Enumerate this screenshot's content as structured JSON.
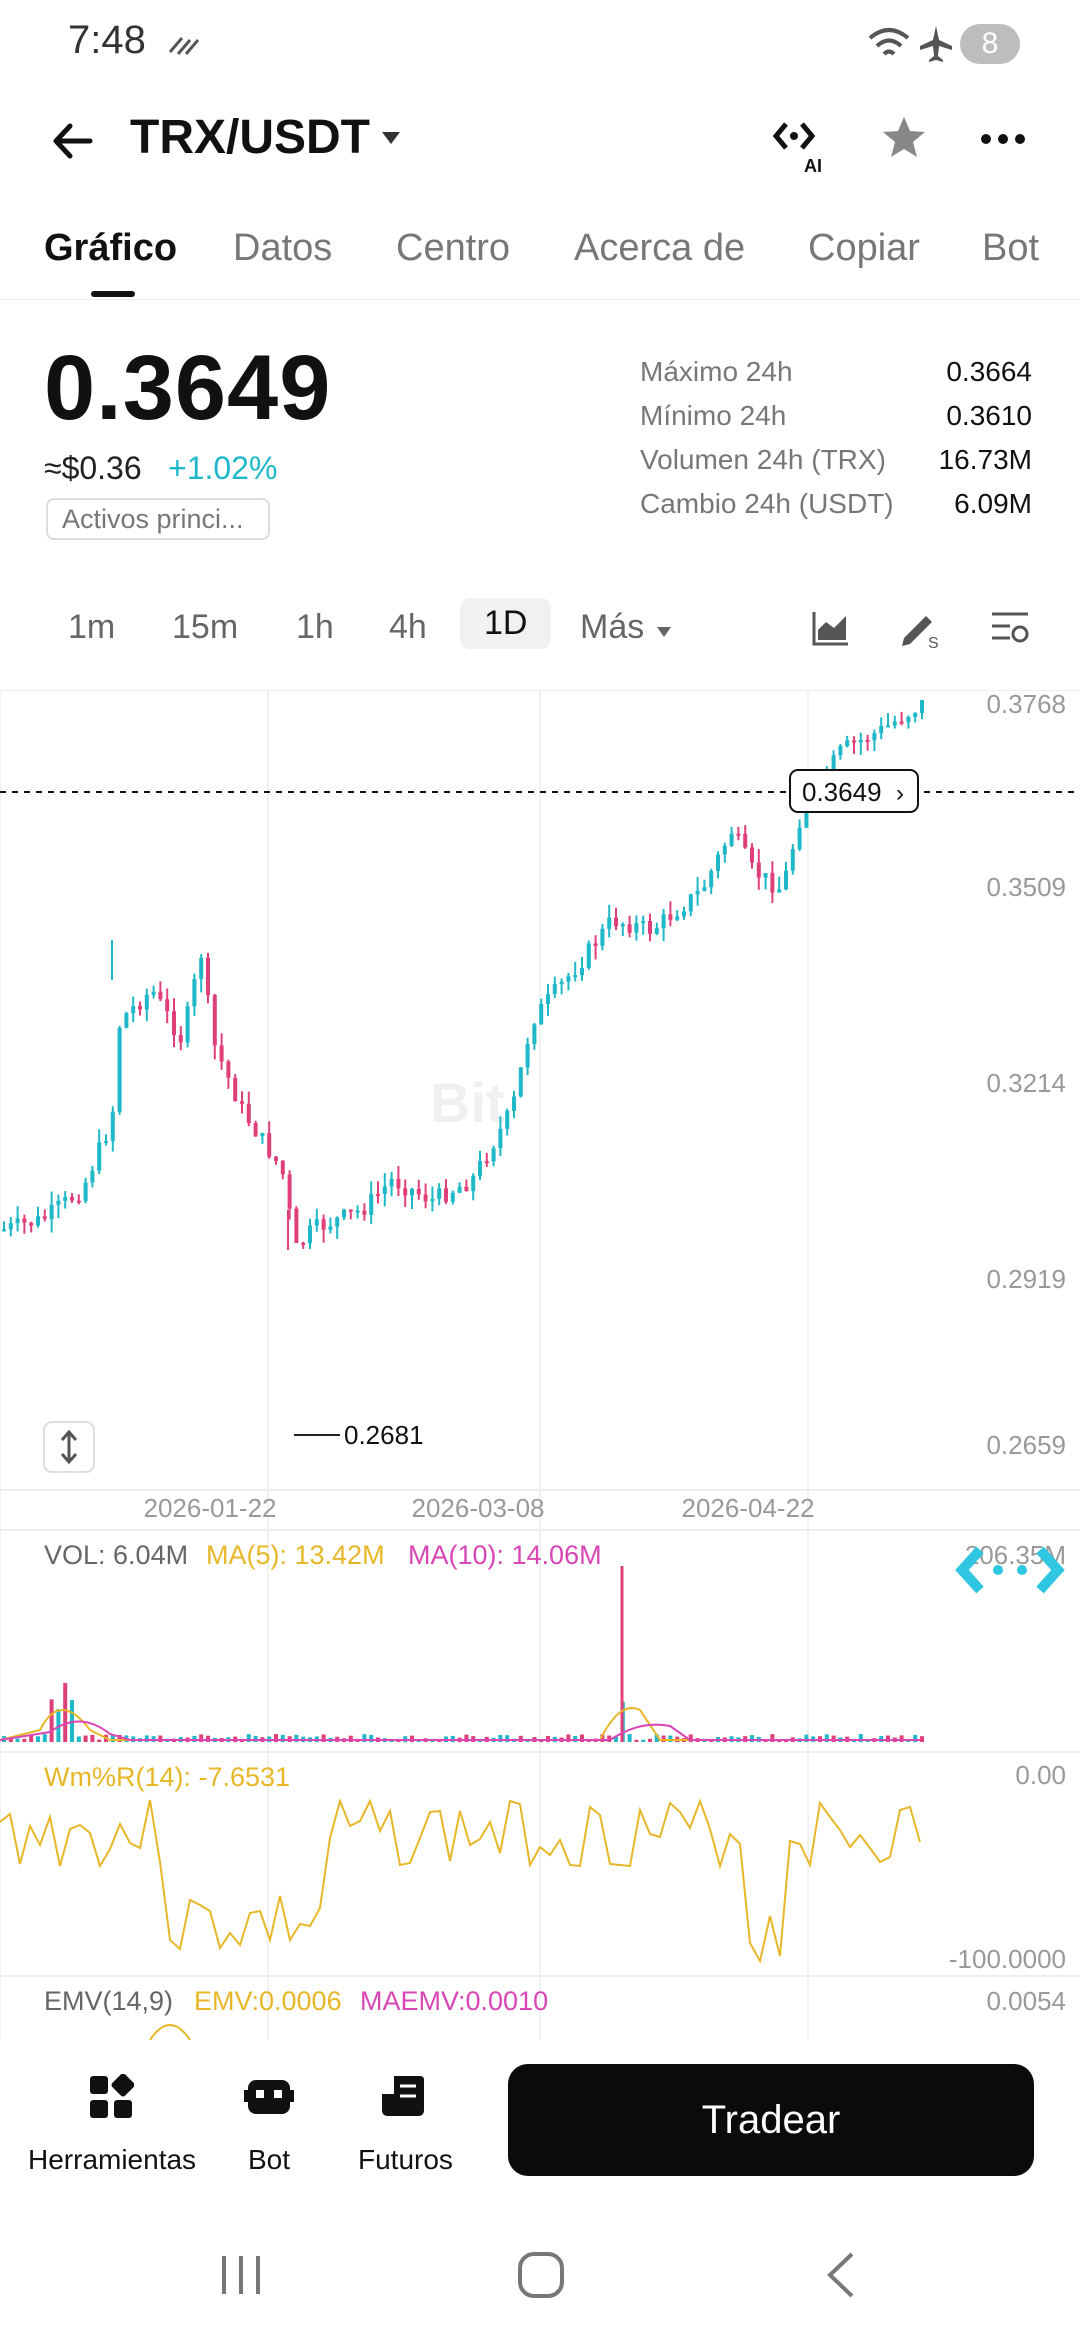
{
  "status_bar": {
    "time": "7:48",
    "battery": "8"
  },
  "header": {
    "pair": "TRX/USDT"
  },
  "tabs": [
    "Gráfico",
    "Datos",
    "Centro",
    "Acerca de",
    "Copiar",
    "Bot"
  ],
  "price": {
    "last": "0.3649",
    "usd": "≈$0.36",
    "change": "+1.02%",
    "tag": "Activos princi...",
    "stats": [
      {
        "label": "Máximo 24h",
        "value": "0.3664"
      },
      {
        "label": "Mínimo 24h",
        "value": "0.3610"
      },
      {
        "label": "Volumen 24h (TRX)",
        "value": "16.73M"
      },
      {
        "label": "Cambio 24h (USDT)",
        "value": "6.09M"
      }
    ]
  },
  "intervals": [
    "1m",
    "15m",
    "1h",
    "4h",
    "1D",
    "Más"
  ],
  "selected_interval": "1D",
  "chart": {
    "price_axis": [
      "0.3768",
      "0.3509",
      "0.3214",
      "0.2919",
      "0.2659"
    ],
    "date_axis": [
      "2026-01-22",
      "2026-03-08",
      "2026-04-22"
    ],
    "last_price_label": "0.3649",
    "low_label": "0.2681",
    "watermark": "Bit"
  },
  "indicators": {
    "vol": {
      "label": "VOL: 6.04M",
      "ma5": "MA(5): 13.42M",
      "ma10": "MA(10): 14.06M",
      "axis_top": "206.35M"
    },
    "wmr": {
      "label": "Wm%R(14): -7.6531",
      "axis_top": "0.00",
      "axis_bottom": "-100.0000"
    },
    "emv": {
      "label": "EMV(14,9)",
      "emv": "EMV:0.0006",
      "maemv": "MAEMV:0.0010",
      "axis_top": "0.0054"
    }
  },
  "bottom_bar": {
    "tools": [
      {
        "label": "Herramientas",
        "icon": "tools-icon"
      },
      {
        "label": "Bot",
        "icon": "bot-icon"
      },
      {
        "label": "Futuros",
        "icon": "futures-icon"
      }
    ],
    "trade_button": "Tradear"
  },
  "colors": {
    "up": "#1fb8c9",
    "down": "#e0407a",
    "ma5": "#e7b728",
    "ma10": "#d946b5"
  }
}
